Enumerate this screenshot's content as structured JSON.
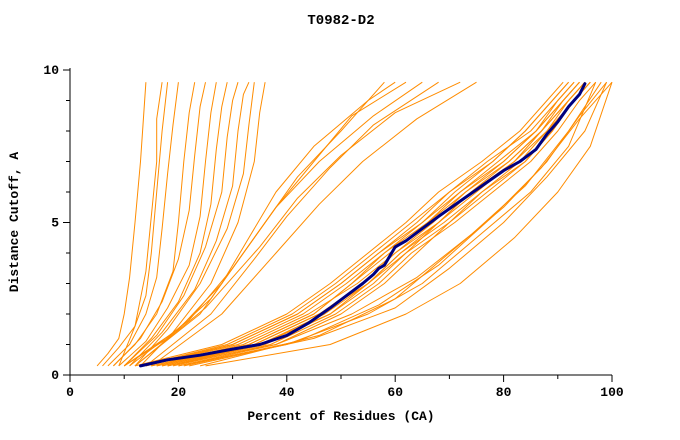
{
  "title": "T0982-D2",
  "chart_data": {
    "type": "line",
    "title": "T0982-D2",
    "xlabel": "Percent of Residues (CA)",
    "ylabel": "Distance Cutoff, A",
    "xlim": [
      0,
      100
    ],
    "ylim": [
      0,
      10
    ],
    "x_major_ticks": [
      0,
      20,
      40,
      60,
      80,
      100
    ],
    "x_minor_ticks": [
      10,
      30,
      50,
      70,
      90
    ],
    "y_major_ticks": [
      0,
      5,
      10
    ],
    "y_minor_ticks": [
      1,
      2,
      3,
      4,
      6,
      7,
      8,
      9
    ],
    "grid": false,
    "legend": "none",
    "colors": {
      "models": "#ff8c00",
      "highlight": "#000080",
      "axis": "#000000"
    },
    "highlight_series": {
      "points": [
        [
          13,
          0.3
        ],
        [
          18,
          0.5
        ],
        [
          24,
          0.65
        ],
        [
          30,
          0.85
        ],
        [
          35,
          1.0
        ],
        [
          40,
          1.3
        ],
        [
          44,
          1.7
        ],
        [
          48,
          2.2
        ],
        [
          51,
          2.6
        ],
        [
          54,
          3.0
        ],
        [
          56,
          3.3
        ],
        [
          57,
          3.5
        ],
        [
          58,
          3.6
        ],
        [
          60,
          4.2
        ],
        [
          62,
          4.4
        ],
        [
          65,
          4.8
        ],
        [
          68,
          5.2
        ],
        [
          72,
          5.7
        ],
        [
          76,
          6.2
        ],
        [
          80,
          6.7
        ],
        [
          83,
          7.0
        ],
        [
          86,
          7.4
        ],
        [
          88,
          7.9
        ],
        [
          90,
          8.3
        ],
        [
          92,
          8.8
        ],
        [
          94,
          9.2
        ],
        [
          95,
          9.55
        ]
      ]
    },
    "series": [
      [
        [
          5,
          0.3
        ],
        [
          7,
          0.7
        ],
        [
          9,
          1.2
        ],
        [
          10,
          2.0
        ],
        [
          11,
          3.2
        ],
        [
          12,
          5.0
        ],
        [
          13,
          7.0
        ],
        [
          14,
          9.6
        ]
      ],
      [
        [
          6,
          0.3
        ],
        [
          9,
          0.9
        ],
        [
          12,
          1.6
        ],
        [
          14,
          2.6
        ],
        [
          15,
          4.0
        ],
        [
          16,
          6.0
        ],
        [
          17,
          8.0
        ],
        [
          18,
          9.6
        ]
      ],
      [
        [
          7,
          0.3
        ],
        [
          11,
          1.0
        ],
        [
          14,
          2.0
        ],
        [
          16,
          3.2
        ],
        [
          17,
          4.8
        ],
        [
          18,
          6.6
        ],
        [
          19,
          8.2
        ],
        [
          20,
          9.6
        ]
      ],
      [
        [
          8,
          0.3
        ],
        [
          12,
          1.0
        ],
        [
          16,
          2.0
        ],
        [
          19,
          3.4
        ],
        [
          20,
          5.0
        ],
        [
          21,
          7.0
        ],
        [
          22,
          8.6
        ],
        [
          23,
          9.6
        ]
      ],
      [
        [
          8,
          0.3
        ],
        [
          13,
          1.2
        ],
        [
          17,
          2.4
        ],
        [
          20,
          3.8
        ],
        [
          22,
          5.4
        ],
        [
          23,
          7.2
        ],
        [
          24,
          8.8
        ],
        [
          25,
          9.6
        ]
      ],
      [
        [
          9,
          0.3
        ],
        [
          14,
          1.1
        ],
        [
          18,
          2.2
        ],
        [
          22,
          3.6
        ],
        [
          24,
          5.2
        ],
        [
          25,
          7.0
        ],
        [
          26,
          8.6
        ],
        [
          27,
          9.6
        ]
      ],
      [
        [
          10,
          0.3
        ],
        [
          15,
          1.2
        ],
        [
          20,
          2.4
        ],
        [
          24,
          4.0
        ],
        [
          26,
          5.6
        ],
        [
          27,
          7.4
        ],
        [
          28,
          8.8
        ],
        [
          29,
          9.6
        ]
      ],
      [
        [
          10,
          0.3
        ],
        [
          16,
          1.3
        ],
        [
          21,
          2.6
        ],
        [
          25,
          4.2
        ],
        [
          28,
          6.0
        ],
        [
          29,
          7.8
        ],
        [
          30,
          9.0
        ],
        [
          31,
          9.6
        ]
      ],
      [
        [
          11,
          0.3
        ],
        [
          17,
          1.4
        ],
        [
          23,
          2.8
        ],
        [
          27,
          4.4
        ],
        [
          30,
          6.2
        ],
        [
          31,
          8.0
        ],
        [
          32,
          9.2
        ],
        [
          33,
          9.6
        ]
      ],
      [
        [
          12,
          0.3
        ],
        [
          18,
          1.5
        ],
        [
          24,
          3.0
        ],
        [
          29,
          4.8
        ],
        [
          32,
          6.6
        ],
        [
          33,
          8.2
        ],
        [
          34,
          9.6
        ]
      ],
      [
        [
          13,
          0.3
        ],
        [
          19,
          1.4
        ],
        [
          26,
          3.0
        ],
        [
          31,
          5.0
        ],
        [
          34,
          7.0
        ],
        [
          35,
          8.6
        ],
        [
          36,
          9.6
        ]
      ],
      [
        [
          9,
          0.3
        ],
        [
          12,
          1.6
        ],
        [
          14,
          3.4
        ],
        [
          15,
          5.2
        ],
        [
          16,
          7.0
        ],
        [
          16,
          8.4
        ],
        [
          17,
          9.6
        ]
      ],
      [
        [
          10,
          0.3
        ],
        [
          20,
          1.5
        ],
        [
          28,
          3.0
        ],
        [
          33,
          4.5
        ],
        [
          38,
          6.0
        ],
        [
          45,
          7.5
        ],
        [
          55,
          9.0
        ],
        [
          60,
          9.6
        ]
      ],
      [
        [
          11,
          0.3
        ],
        [
          22,
          1.8
        ],
        [
          30,
          3.5
        ],
        [
          36,
          5.0
        ],
        [
          42,
          6.5
        ],
        [
          50,
          8.0
        ],
        [
          58,
          9.6
        ]
      ],
      [
        [
          12,
          0.3
        ],
        [
          24,
          2.0
        ],
        [
          32,
          4.0
        ],
        [
          38,
          5.5
        ],
        [
          45,
          7.0
        ],
        [
          52,
          8.5
        ],
        [
          62,
          9.6
        ]
      ],
      [
        [
          10,
          0.3
        ],
        [
          18,
          1.2
        ],
        [
          26,
          2.5
        ],
        [
          32,
          4.0
        ],
        [
          38,
          5.5
        ],
        [
          46,
          7.0
        ],
        [
          56,
          8.5
        ],
        [
          65,
          9.6
        ]
      ],
      [
        [
          14,
          0.3
        ],
        [
          26,
          2.0
        ],
        [
          34,
          3.8
        ],
        [
          40,
          5.2
        ],
        [
          48,
          6.8
        ],
        [
          56,
          8.2
        ],
        [
          68,
          9.6
        ]
      ],
      [
        [
          12,
          0.3
        ],
        [
          25,
          2.2
        ],
        [
          35,
          4.2
        ],
        [
          42,
          5.8
        ],
        [
          50,
          7.2
        ],
        [
          60,
          8.6
        ],
        [
          72,
          9.6
        ]
      ],
      [
        [
          15,
          0.3
        ],
        [
          28,
          2.0
        ],
        [
          38,
          4.0
        ],
        [
          46,
          5.6
        ],
        [
          54,
          7.0
        ],
        [
          64,
          8.4
        ],
        [
          75,
          9.6
        ]
      ],
      [
        [
          16,
          0.3
        ],
        [
          33,
          1
        ],
        [
          45,
          2
        ],
        [
          52,
          3
        ],
        [
          58,
          4
        ],
        [
          66,
          5
        ],
        [
          72,
          6
        ],
        [
          80,
          7
        ],
        [
          86,
          8
        ],
        [
          91,
          9
        ],
        [
          94,
          9.6
        ]
      ],
      [
        [
          14,
          0.3
        ],
        [
          30,
          1
        ],
        [
          42,
          2
        ],
        [
          50,
          3
        ],
        [
          57,
          4
        ],
        [
          64,
          5
        ],
        [
          70,
          6
        ],
        [
          78,
          7
        ],
        [
          84,
          8
        ],
        [
          89,
          9
        ],
        [
          92,
          9.6
        ]
      ],
      [
        [
          18,
          0.3
        ],
        [
          36,
          1
        ],
        [
          48,
          2
        ],
        [
          56,
          3
        ],
        [
          62,
          4
        ],
        [
          68,
          5
        ],
        [
          74,
          6
        ],
        [
          82,
          7
        ],
        [
          88,
          8
        ],
        [
          92,
          9
        ],
        [
          95,
          9.6
        ]
      ],
      [
        [
          12,
          0.3
        ],
        [
          28,
          1
        ],
        [
          40,
          2
        ],
        [
          48,
          3
        ],
        [
          55,
          4
        ],
        [
          62,
          5
        ],
        [
          68,
          6
        ],
        [
          76,
          7
        ],
        [
          83,
          8
        ],
        [
          88,
          9
        ],
        [
          91,
          9.6
        ]
      ],
      [
        [
          20,
          0.3
        ],
        [
          38,
          1
        ],
        [
          50,
          2
        ],
        [
          58,
          3
        ],
        [
          64,
          4
        ],
        [
          70,
          5
        ],
        [
          77,
          6
        ],
        [
          84,
          7
        ],
        [
          89,
          8
        ],
        [
          93,
          9
        ],
        [
          96,
          9.6
        ]
      ],
      [
        [
          15,
          0.3
        ],
        [
          32,
          1
        ],
        [
          44,
          2
        ],
        [
          53,
          3
        ],
        [
          60,
          4
        ],
        [
          67,
          5
        ],
        [
          73,
          6
        ],
        [
          81,
          7
        ],
        [
          87,
          8
        ],
        [
          92,
          9
        ],
        [
          95,
          9.6
        ]
      ],
      [
        [
          17,
          0.3
        ],
        [
          35,
          1
        ],
        [
          47,
          2
        ],
        [
          55,
          3
        ],
        [
          61,
          4
        ],
        [
          69,
          5
        ],
        [
          76,
          6
        ],
        [
          83,
          7
        ],
        [
          88,
          8
        ],
        [
          93,
          9
        ],
        [
          96,
          9.6
        ]
      ],
      [
        [
          13,
          0.3
        ],
        [
          29,
          1
        ],
        [
          41,
          2
        ],
        [
          49,
          3
        ],
        [
          56,
          4
        ],
        [
          63,
          5
        ],
        [
          70,
          6
        ],
        [
          77,
          7
        ],
        [
          85,
          8
        ],
        [
          90,
          9
        ],
        [
          93,
          9.6
        ]
      ],
      [
        [
          19,
          0.3
        ],
        [
          37,
          1
        ],
        [
          49,
          2
        ],
        [
          57,
          3
        ],
        [
          63,
          4
        ],
        [
          71,
          5
        ],
        [
          78,
          6
        ],
        [
          85,
          7
        ],
        [
          90,
          8
        ],
        [
          94,
          9
        ],
        [
          97,
          9.6
        ]
      ],
      [
        [
          16,
          0.3
        ],
        [
          34,
          1
        ],
        [
          46,
          2
        ],
        [
          54,
          3
        ],
        [
          60,
          4
        ],
        [
          68,
          5
        ],
        [
          75,
          6
        ],
        [
          82,
          7
        ],
        [
          87,
          8
        ],
        [
          91,
          9
        ],
        [
          94,
          9.6
        ]
      ],
      [
        [
          14,
          0.3
        ],
        [
          31,
          1
        ],
        [
          43,
          2
        ],
        [
          51,
          3
        ],
        [
          58,
          4
        ],
        [
          65,
          5
        ],
        [
          72,
          6
        ],
        [
          79,
          7
        ],
        [
          86,
          8
        ],
        [
          90,
          9
        ],
        [
          93,
          9.6
        ]
      ],
      [
        [
          18,
          0.3
        ],
        [
          35,
          1
        ],
        [
          48,
          2
        ],
        [
          55,
          3
        ],
        [
          62,
          4
        ],
        [
          70,
          5
        ],
        [
          76,
          6
        ],
        [
          84,
          7
        ],
        [
          89,
          8
        ],
        [
          93,
          9
        ],
        [
          96,
          9.6
        ]
      ],
      [
        [
          15,
          0.3
        ],
        [
          33,
          1
        ],
        [
          45,
          2
        ],
        [
          52,
          3
        ],
        [
          59,
          4
        ],
        [
          66,
          5
        ],
        [
          73,
          6
        ],
        [
          80,
          7
        ],
        [
          86,
          8
        ],
        [
          91,
          9
        ],
        [
          94,
          9.6
        ]
      ],
      [
        [
          17,
          0.3
        ],
        [
          34,
          1
        ],
        [
          46,
          2
        ],
        [
          55,
          3
        ],
        [
          61,
          4
        ],
        [
          68,
          5
        ],
        [
          74,
          6
        ],
        [
          81,
          7
        ],
        [
          87,
          8
        ],
        [
          92,
          9
        ],
        [
          95,
          9.6
        ]
      ],
      [
        [
          13,
          0.3
        ],
        [
          30,
          1
        ],
        [
          42,
          2
        ],
        [
          50,
          3
        ],
        [
          57,
          4
        ],
        [
          65,
          5
        ],
        [
          71,
          6
        ],
        [
          78,
          7
        ],
        [
          84,
          8
        ],
        [
          89,
          9
        ],
        [
          92,
          9.6
        ]
      ],
      [
        [
          20,
          0.3
        ],
        [
          40,
          1.0
        ],
        [
          55,
          2.0
        ],
        [
          65,
          3.0
        ],
        [
          75,
          4.5
        ],
        [
          85,
          6.0
        ],
        [
          92,
          7.5
        ],
        [
          97,
          9.6
        ]
      ],
      [
        [
          22,
          0.3
        ],
        [
          45,
          1.2
        ],
        [
          60,
          2.2
        ],
        [
          70,
          3.5
        ],
        [
          80,
          5.0
        ],
        [
          88,
          6.5
        ],
        [
          95,
          8.0
        ],
        [
          99,
          9.6
        ]
      ],
      [
        [
          25,
          0.3
        ],
        [
          48,
          1.0
        ],
        [
          62,
          2.0
        ],
        [
          72,
          3.0
        ],
        [
          82,
          4.5
        ],
        [
          90,
          6.0
        ],
        [
          96,
          7.5
        ],
        [
          100,
          9.6
        ]
      ],
      [
        [
          18,
          0.3
        ],
        [
          38,
          1.0
        ],
        [
          52,
          2.0
        ],
        [
          64,
          3.2
        ],
        [
          74,
          4.6
        ],
        [
          84,
          6.2
        ],
        [
          92,
          8.0
        ],
        [
          98,
          9.6
        ]
      ],
      [
        [
          24,
          0.3
        ],
        [
          46,
          1.3
        ],
        [
          60,
          2.5
        ],
        [
          70,
          4.0
        ],
        [
          80,
          5.5
        ],
        [
          88,
          7.0
        ],
        [
          94,
          8.5
        ],
        [
          99,
          9.6
        ]
      ],
      [
        [
          21,
          0.3
        ],
        [
          42,
          1.1
        ],
        [
          57,
          2.3
        ],
        [
          68,
          3.6
        ],
        [
          78,
          5.2
        ],
        [
          87,
          6.8
        ],
        [
          94,
          8.4
        ],
        [
          100,
          9.6
        ]
      ]
    ]
  }
}
